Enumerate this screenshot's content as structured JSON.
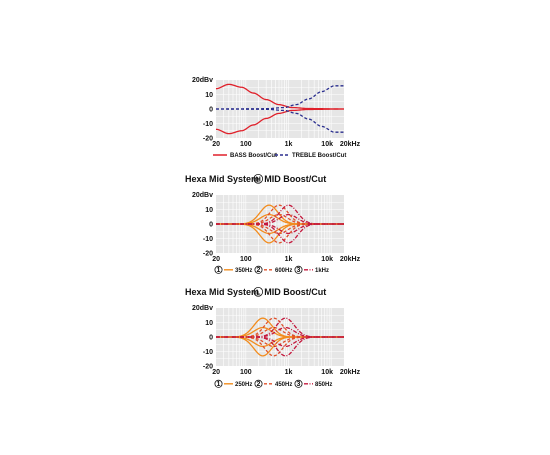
{
  "chart_data": [
    {
      "type": "line",
      "title": "",
      "ylabel": "20dBv",
      "xscale": "log",
      "xlim": [
        20,
        20000
      ],
      "ylim": [
        -20,
        20
      ],
      "x_ticks": [
        {
          "v": 20,
          "label": "20"
        },
        {
          "v": 100,
          "label": "100"
        },
        {
          "v": 1000,
          "label": "1k"
        },
        {
          "v": 10000,
          "label": "10k"
        },
        {
          "v": 20000,
          "label": "20kHz"
        }
      ],
      "y_ticks": [
        {
          "v": 10,
          "label": "10"
        },
        {
          "v": 0,
          "label": "0"
        },
        {
          "v": -10,
          "label": "-10"
        },
        {
          "v": -20,
          "label": "-20"
        }
      ],
      "grid": true,
      "series": [
        {
          "name": "BASS Boost/Cut",
          "color": "#e0202a",
          "dash": "solid",
          "curves": [
            {
              "x": [
                20,
                40,
                80,
                150,
                300,
                600,
                1200,
                3000,
                20000
              ],
              "y": [
                14,
                17,
                15,
                11,
                6.5,
                3,
                1,
                0.3,
                0
              ]
            },
            {
              "x": [
                20,
                40,
                80,
                150,
                300,
                600,
                1200,
                3000,
                20000
              ],
              "y": [
                -14,
                -17,
                -15,
                -11,
                -6.5,
                -3,
                -1,
                -0.3,
                0
              ]
            }
          ]
        },
        {
          "name": "TREBLE Boost/Cut",
          "color": "#2b2f8f",
          "dash": "dashed",
          "curves": [
            {
              "x": [
                20,
                300,
                800,
                1500,
                3000,
                6000,
                12000,
                20000
              ],
              "y": [
                0,
                0.2,
                1,
                3,
                7,
                12,
                16,
                16
              ]
            },
            {
              "x": [
                20,
                300,
                800,
                1500,
                3000,
                6000,
                12000,
                20000
              ],
              "y": [
                0,
                -0.2,
                -1,
                -3,
                -7,
                -12,
                -16,
                -16
              ]
            }
          ]
        }
      ],
      "legend": "bottom"
    },
    {
      "type": "line",
      "title": "Hexa Mid System",
      "title_badge": "H",
      "title_suffix": "MID Boost/Cut",
      "ylabel": "20dBv",
      "xscale": "log",
      "xlim": [
        20,
        20000
      ],
      "ylim": [
        -20,
        20
      ],
      "x_ticks": [
        {
          "v": 20,
          "label": "20"
        },
        {
          "v": 100,
          "label": "100"
        },
        {
          "v": 1000,
          "label": "1k"
        },
        {
          "v": 10000,
          "label": "10k"
        },
        {
          "v": 20000,
          "label": "20kHz"
        }
      ],
      "y_ticks": [
        {
          "v": 10,
          "label": "10"
        },
        {
          "v": 0,
          "label": "0"
        },
        {
          "v": -10,
          "label": "-10"
        },
        {
          "v": -20,
          "label": "-20"
        }
      ],
      "grid": true,
      "series": [
        {
          "name": "350Hz",
          "marker": "1",
          "color": "#f28c1e",
          "dash": "solid",
          "center": 350,
          "gain": 13,
          "width_oct": 1.4
        },
        {
          "name": "600Hz",
          "marker": "2",
          "color": "#e0502a",
          "dash": "dashed",
          "center": 600,
          "gain": 13,
          "width_oct": 1.4
        },
        {
          "name": "1kHz",
          "marker": "3",
          "color": "#c4183c",
          "dash": "dashdot",
          "center": 1000,
          "gain": 13,
          "width_oct": 1.4
        }
      ],
      "legend": "bottom"
    },
    {
      "type": "line",
      "title": "Hexa Mid System",
      "title_badge": "L",
      "title_suffix": "MID Boost/Cut",
      "ylabel": "20dBv",
      "xscale": "log",
      "xlim": [
        20,
        20000
      ],
      "ylim": [
        -20,
        20
      ],
      "x_ticks": [
        {
          "v": 20,
          "label": "20"
        },
        {
          "v": 100,
          "label": "100"
        },
        {
          "v": 1000,
          "label": "1k"
        },
        {
          "v": 10000,
          "label": "10k"
        },
        {
          "v": 20000,
          "label": "20kHz"
        }
      ],
      "y_ticks": [
        {
          "v": 10,
          "label": "10"
        },
        {
          "v": 0,
          "label": "0"
        },
        {
          "v": -10,
          "label": "-10"
        },
        {
          "v": -20,
          "label": "-20"
        }
      ],
      "grid": true,
      "series": [
        {
          "name": "250Hz",
          "marker": "1",
          "color": "#f28c1e",
          "dash": "solid",
          "center": 250,
          "gain": 13,
          "width_oct": 1.4
        },
        {
          "name": "450Hz",
          "marker": "2",
          "color": "#e0502a",
          "dash": "dashed",
          "center": 450,
          "gain": 13,
          "width_oct": 1.4
        },
        {
          "name": "850Hz",
          "marker": "3",
          "color": "#c4183c",
          "dash": "dashdot",
          "center": 850,
          "gain": 13,
          "width_oct": 1.4
        }
      ],
      "legend": "bottom"
    }
  ]
}
